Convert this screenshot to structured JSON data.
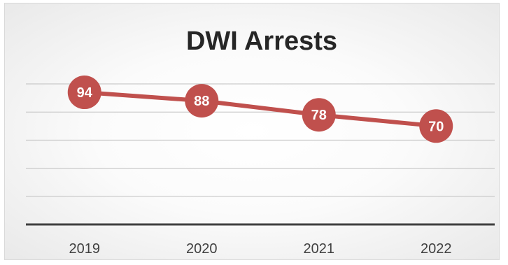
{
  "chart_data": {
    "type": "line",
    "title": "DWI Arrests",
    "xlabel": "",
    "ylabel": "",
    "categories": [
      "2019",
      "2020",
      "2021",
      "2022"
    ],
    "series": [
      {
        "values": [
          94,
          88,
          78,
          70
        ]
      }
    ],
    "ylim": [
      0,
      100
    ],
    "y_tick_step": 20,
    "grid": true,
    "y_axis_labels_shown": false,
    "data_labels": true,
    "legend": "none",
    "colors": {
      "line": "#c0504d",
      "marker": "#c0504d",
      "data_label_text": "#ffffff",
      "title_text": "#262626",
      "axis_text": "#404040",
      "axis_line": "#404040",
      "gridline": "#bfbfbf"
    }
  }
}
